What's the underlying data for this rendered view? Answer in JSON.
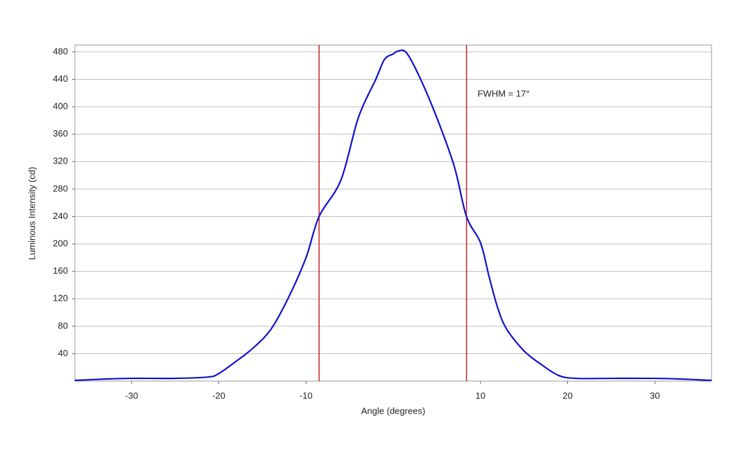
{
  "chart_data": {
    "type": "line",
    "x_label": "Angle (degrees)",
    "y_label": "Luminous Intensity (cd)",
    "x": [
      -36.5,
      -33,
      -30,
      -25,
      -21.2,
      -20,
      -18,
      -16,
      -14,
      -12,
      -10,
      -8.5,
      -6,
      -4,
      -2,
      -1,
      0,
      0.5,
      1.5,
      3,
      5,
      7,
      8.4,
      10,
      11,
      12,
      13,
      15,
      17,
      19,
      21,
      25,
      30,
      33,
      36.5
    ],
    "values": [
      1,
      3,
      4,
      4,
      6,
      11,
      29,
      49,
      76,
      122,
      180,
      240,
      293,
      384,
      440,
      469,
      477,
      481,
      479,
      444,
      384,
      313,
      240,
      202,
      152,
      106,
      76,
      44,
      24,
      8,
      4,
      4,
      4,
      3,
      1
    ],
    "color": "#1010cc",
    "vlines": [
      -8.5,
      8.4
    ],
    "vline_color": "#cc2222",
    "annotation": "FWHM = 17°",
    "xlim": [
      -36.5,
      36.5
    ],
    "ylim": [
      0,
      490
    ],
    "xticks": [
      -30,
      -20,
      -10,
      10,
      20,
      30
    ],
    "yticks": [
      40,
      80,
      120,
      160,
      200,
      240,
      280,
      320,
      360,
      400,
      440,
      480
    ],
    "grid": true
  }
}
